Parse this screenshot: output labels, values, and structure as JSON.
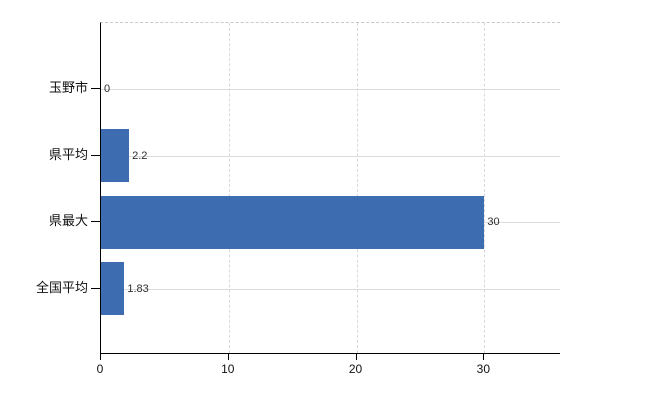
{
  "chart_data": {
    "type": "bar",
    "orientation": "horizontal",
    "title": "",
    "xlabel": "",
    "ylabel": "",
    "categories": [
      "玉野市",
      "県平均",
      "県最大",
      "全国平均"
    ],
    "values": [
      0,
      2.2,
      30,
      1.83
    ],
    "value_labels": [
      "0",
      "2.2",
      "30",
      "1.83"
    ],
    "x_ticks": [
      0,
      10,
      20,
      30
    ],
    "x_tick_labels": [
      "0",
      "10",
      "20",
      "30"
    ],
    "xlim": [
      0,
      36
    ],
    "grid": true,
    "legend": false,
    "colors": {
      "bar": "#3d6cb0",
      "horizontal_gridline": "#d9ddd6",
      "vertical_gridline": "#d9d9d9",
      "axis": "#000000",
      "category_text": "#111111",
      "value_text": "#2e2e2e",
      "background": "#ffffff"
    }
  }
}
